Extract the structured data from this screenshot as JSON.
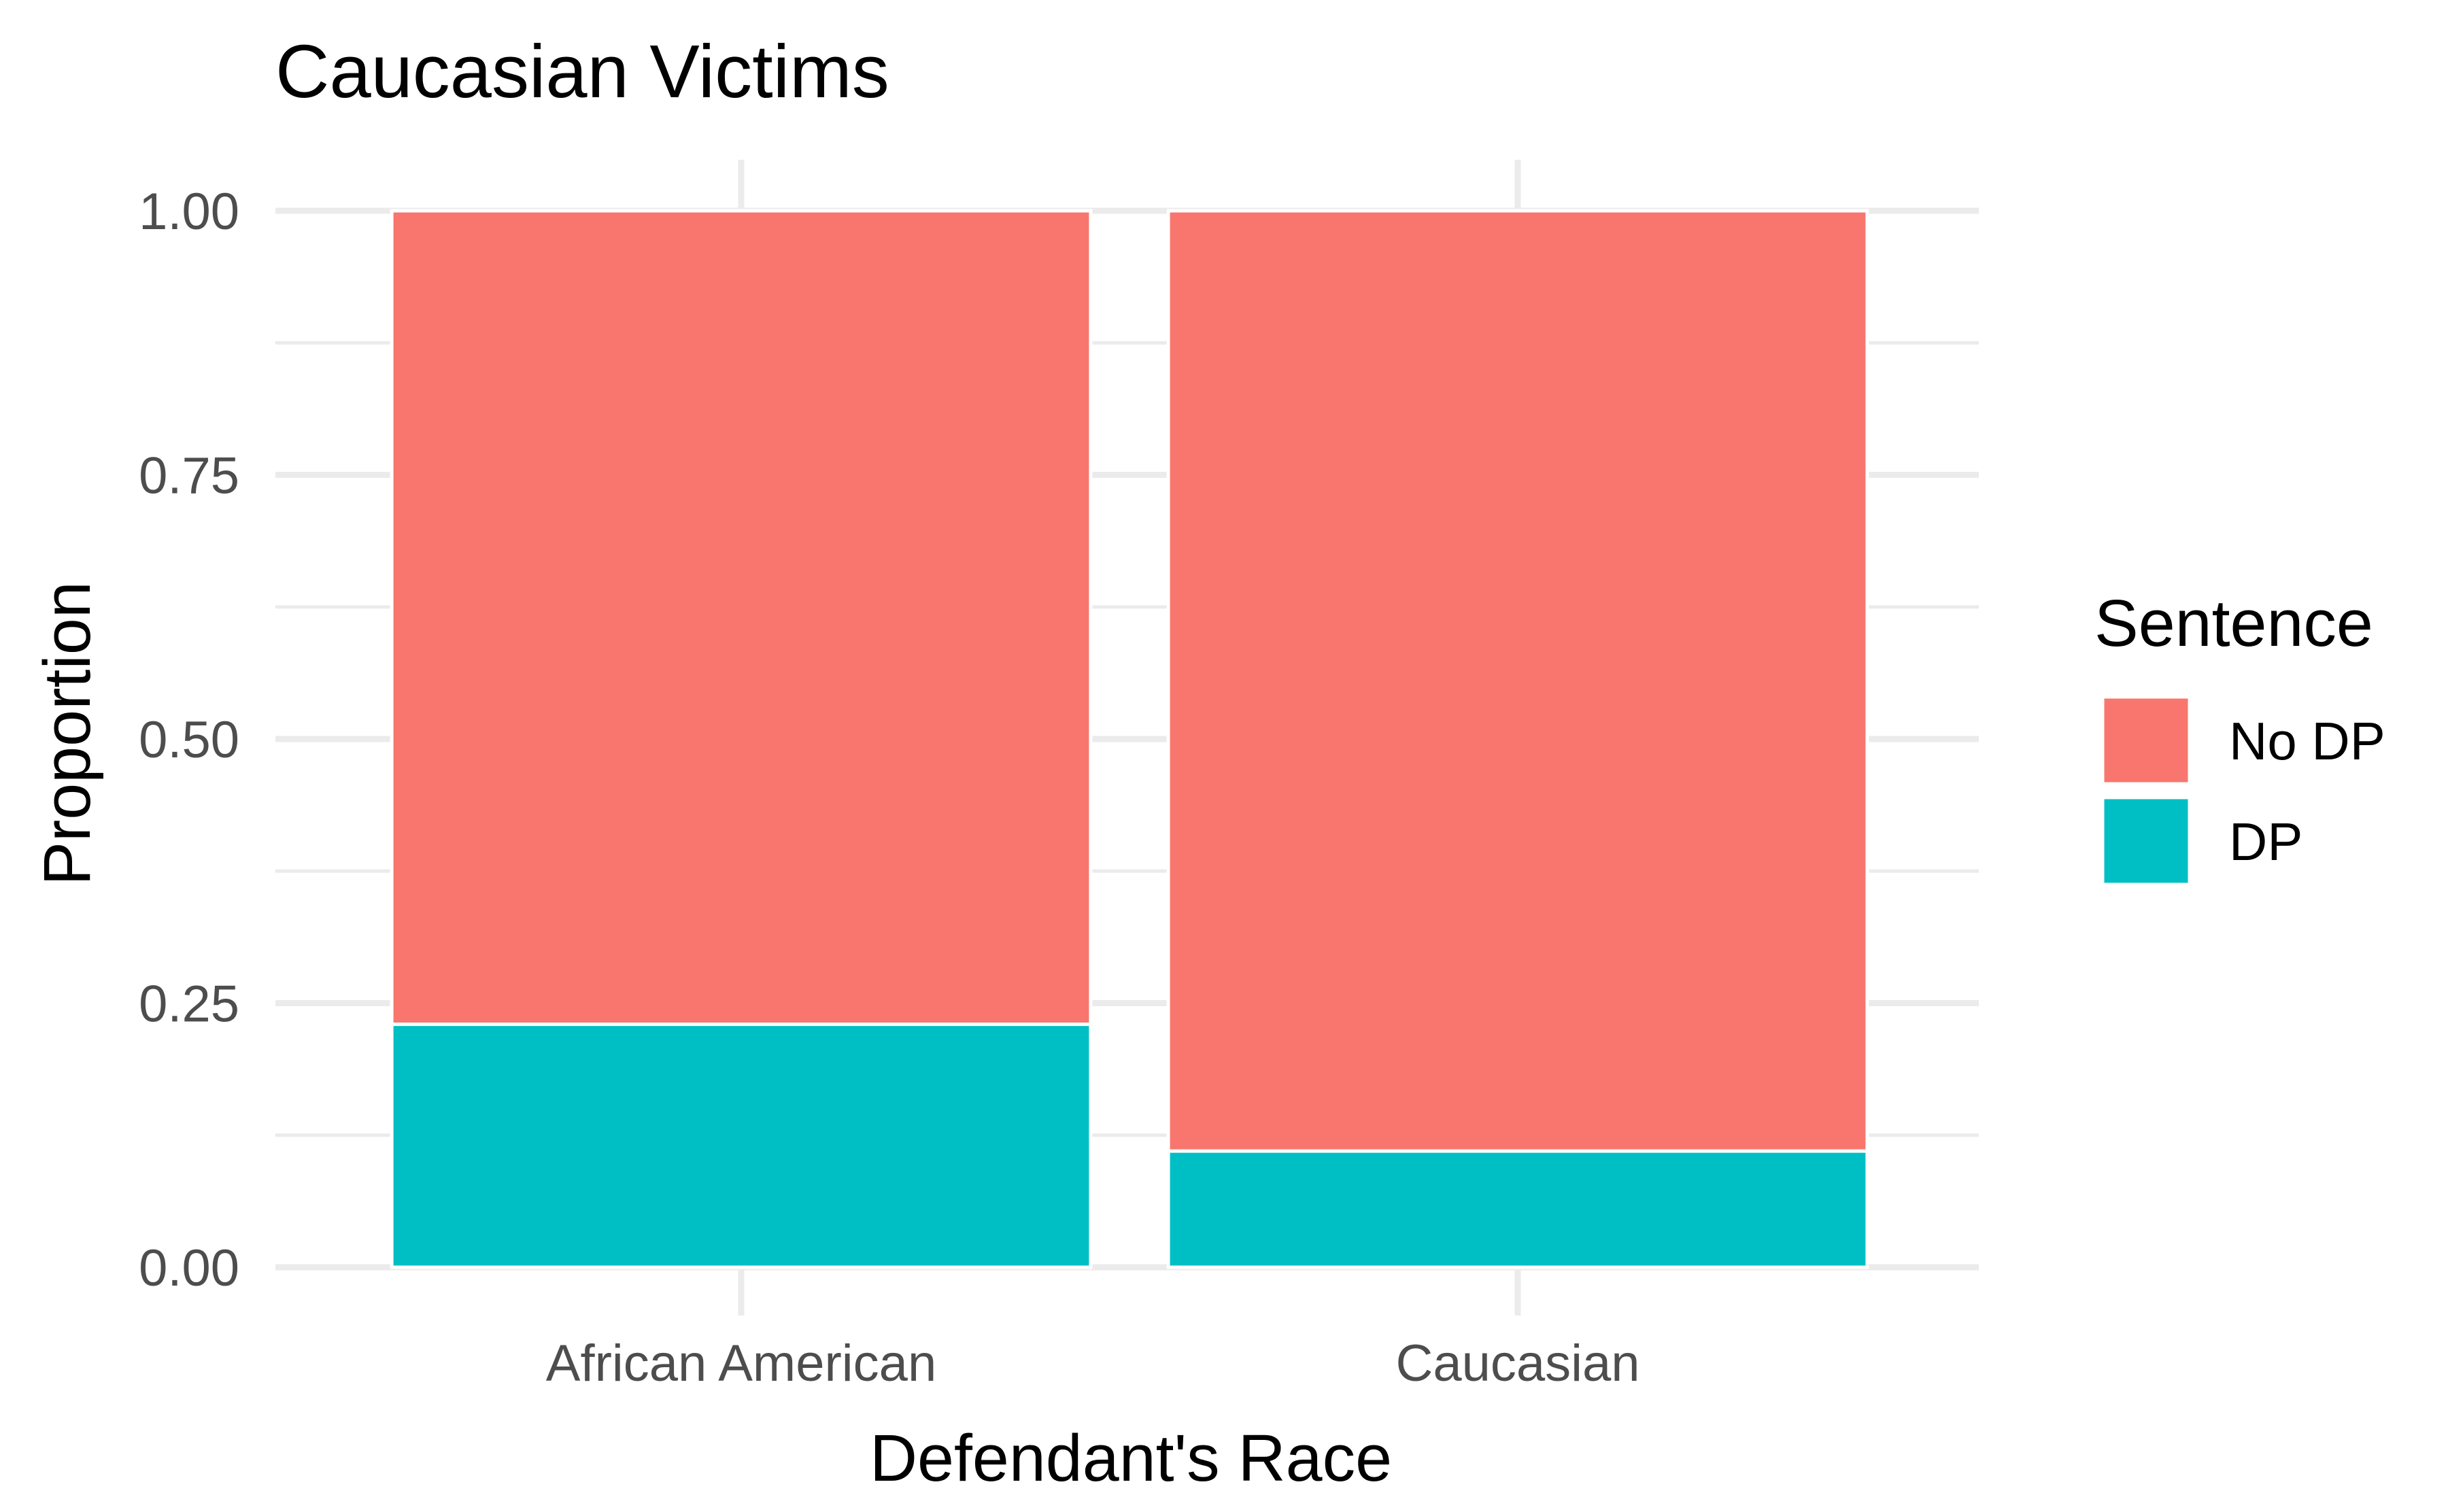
{
  "chart_data": {
    "type": "bar",
    "stacked": true,
    "title": "Caucasian Victims",
    "xlabel": "Defendant's Race",
    "ylabel": "Proportion",
    "categories": [
      "African American",
      "Caucasian"
    ],
    "ylim": [
      0,
      1
    ],
    "yticks": [
      "0.00",
      "0.25",
      "0.50",
      "0.75",
      "1.00"
    ],
    "grid": true,
    "legend": {
      "title": "Sentence",
      "position": "right",
      "entries": [
        "No DP",
        "DP"
      ]
    },
    "series": [
      {
        "name": "DP",
        "color": "#00BFC4",
        "values": [
          0.23,
          0.11
        ]
      },
      {
        "name": "No DP",
        "color": "#F8766D",
        "values": [
          0.77,
          0.89
        ]
      }
    ]
  }
}
